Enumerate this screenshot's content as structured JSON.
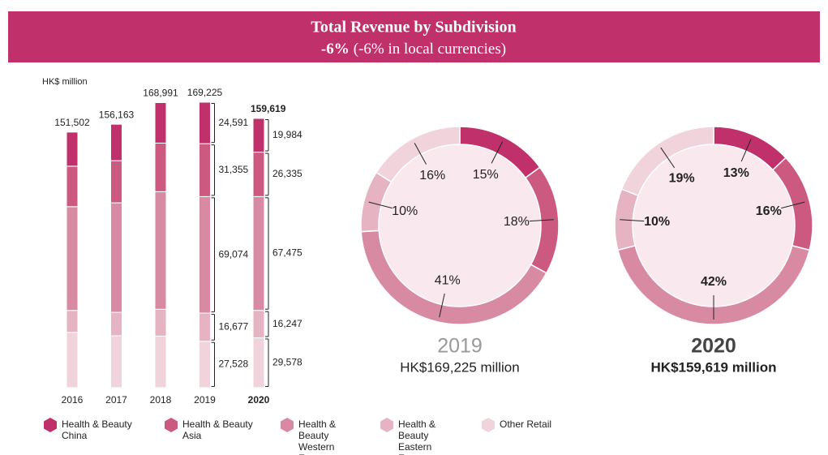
{
  "header": {
    "title": "Total Revenue by Subdivision",
    "subtitle_bold": "-6%",
    "subtitle": "(-6% in local currencies)"
  },
  "chart_data": [
    {
      "type": "stacked_bar",
      "unit_label": "HK$ million",
      "categories": [
        "2016",
        "2017",
        "2018",
        "2019",
        "2020"
      ],
      "ylim": [
        0,
        175000
      ],
      "totals": [
        151502,
        156163,
        168991,
        169225,
        159619
      ],
      "total_labels": [
        "151,502",
        "156,163",
        "168,991",
        "169,225",
        "159,619"
      ],
      "series": [
        {
          "name": "Health & Beauty China",
          "color": "#c0306a",
          "values": [
            20200,
            21600,
            24000,
            24591,
            19984
          ],
          "value_labels": [
            null,
            null,
            null,
            "24,591",
            "19,984"
          ]
        },
        {
          "name": "Health & Beauty Asia",
          "color": "#cc5a80",
          "values": [
            24000,
            25000,
            28800,
            31355,
            26335
          ],
          "value_labels": [
            null,
            null,
            null,
            "31,355",
            "26,335"
          ]
        },
        {
          "name": "Health & Beauty Western Europe",
          "color": "#d98aa3",
          "values": [
            61500,
            64900,
            69700,
            69074,
            67475
          ],
          "value_labels": [
            null,
            null,
            null,
            "69,074",
            "67,475"
          ]
        },
        {
          "name": "Health & Beauty Eastern Europe",
          "color": "#e5b3c2",
          "values": [
            13000,
            13900,
            15900,
            16677,
            16247
          ],
          "value_labels": [
            null,
            null,
            null,
            "16,677",
            "16,247"
          ]
        },
        {
          "name": "Other Retail",
          "color": "#f0d3db",
          "values": [
            32802,
            30763,
            30591,
            27528,
            29578
          ],
          "value_labels": [
            null,
            null,
            null,
            "27,528",
            "29,578"
          ]
        }
      ]
    },
    {
      "type": "donut",
      "title": "2019",
      "subtitle": "HK$169,225 million",
      "values": [
        15,
        18,
        41,
        10,
        16
      ],
      "value_labels": [
        "15%",
        "18%",
        "41%",
        "10%",
        "16%"
      ],
      "colors": [
        "#c0306a",
        "#cc5a80",
        "#d98aa3",
        "#e5b3c2",
        "#f0d3db"
      ]
    },
    {
      "type": "donut",
      "title": "2020",
      "subtitle": "HK$159,619 million",
      "values": [
        13,
        16,
        42,
        10,
        19
      ],
      "value_labels": [
        "13%",
        "16%",
        "42%",
        "10%",
        "19%"
      ],
      "colors": [
        "#c0306a",
        "#cc5a80",
        "#d98aa3",
        "#e5b3c2",
        "#f0d3db"
      ]
    }
  ]
}
